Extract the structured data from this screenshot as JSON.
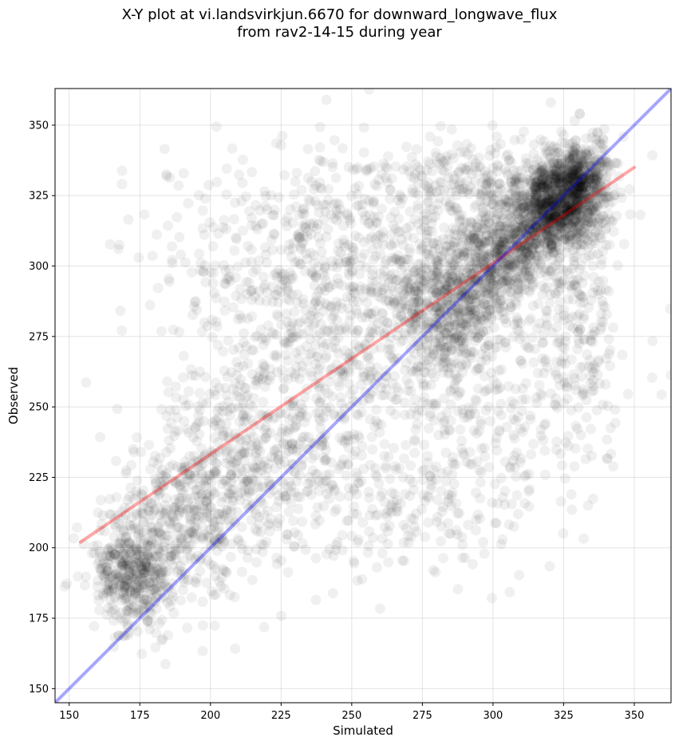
{
  "title": {
    "line1": "X-Y plot at vi.landsvirkjun.6670 for downward_longwave_flux",
    "line2": "from rav2-14-15 during year"
  },
  "chart_data": {
    "type": "scatter",
    "xlabel": "Simulated",
    "ylabel": "Observed",
    "xlim": [
      145,
      363
    ],
    "ylim": [
      145,
      363
    ],
    "xticks": [
      150,
      175,
      200,
      225,
      250,
      275,
      300,
      325,
      350
    ],
    "yticks": [
      150,
      175,
      200,
      225,
      250,
      275,
      300,
      325,
      350
    ],
    "grid": true,
    "marker_color": "#000000",
    "marker_alpha": 0.06,
    "one_to_one_line": {
      "x": [
        145,
        363
      ],
      "y": [
        145,
        363
      ],
      "color": "#0000ff"
    },
    "regression_line": {
      "x": [
        154,
        350
      ],
      "y": [
        202,
        335
      ],
      "color": "#ff0000"
    },
    "point_clusters": [
      {
        "cx": 172,
        "cy": 190,
        "sx": 7,
        "sy": 9,
        "n": 420
      },
      {
        "cx": 190,
        "cy": 210,
        "sx": 12,
        "sy": 16,
        "n": 420
      },
      {
        "cx": 215,
        "cy": 235,
        "sx": 14,
        "sy": 20,
        "n": 420
      },
      {
        "cx": 250,
        "cy": 262,
        "sx": 18,
        "sy": 30,
        "n": 420
      },
      {
        "cx": 285,
        "cy": 285,
        "sx": 10,
        "sy": 12,
        "n": 560
      },
      {
        "cx": 305,
        "cy": 305,
        "sx": 9,
        "sy": 9,
        "n": 560
      },
      {
        "cx": 322,
        "cy": 322,
        "sx": 8,
        "sy": 8,
        "n": 980
      },
      {
        "cx": 330,
        "cy": 332,
        "sx": 6,
        "sy": 7,
        "n": 420
      },
      {
        "cx": 250,
        "cy": 300,
        "sx": 35,
        "sy": 22,
        "n": 700
      },
      {
        "cx": 300,
        "cy": 250,
        "sx": 20,
        "sy": 30,
        "n": 280
      },
      {
        "cx": 330,
        "cy": 285,
        "sx": 8,
        "sy": 25,
        "n": 210
      },
      {
        "cx": 265,
        "cy": 215,
        "sx": 20,
        "sy": 15,
        "n": 140
      },
      {
        "cx": 290,
        "cy": 330,
        "sx": 20,
        "sy": 8,
        "n": 210
      }
    ]
  }
}
